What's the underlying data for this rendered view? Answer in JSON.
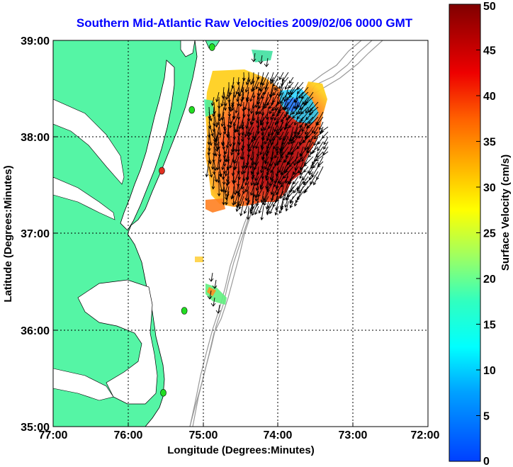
{
  "title": "Southern Mid-Atlantic Raw Velocities 2009/02/06 0000 GMT",
  "xlabel": "Longitude (Degrees:Minutes)",
  "ylabel": "Latitude (Degrees:Minutes)",
  "x_ticks": [
    "77:00",
    "76:00",
    "75:00",
    "74:00",
    "73:00",
    "72:00"
  ],
  "y_ticks": [
    "39:00",
    "38:00",
    "37:00",
    "36:00",
    "35:00"
  ],
  "colorbar": {
    "label": "Surface Velocity (cm/s)",
    "ticks": [
      "0",
      "5",
      "10",
      "15",
      "20",
      "25",
      "30",
      "35",
      "40",
      "45",
      "50"
    ]
  },
  "colors": {
    "land": "#55f5a5",
    "title": "#0000ff",
    "station": "#22dd22",
    "station_alert": "#e03020",
    "bathymetry": "#999999"
  },
  "map": {
    "lon_range": [
      -77,
      -72
    ],
    "lat_range": [
      35,
      39
    ],
    "stations": [
      {
        "lon": -74.88,
        "lat": 38.93,
        "status": "ok"
      },
      {
        "lon": -75.15,
        "lat": 38.28,
        "status": "ok"
      },
      {
        "lon": -75.55,
        "lat": 37.65,
        "status": "alert"
      },
      {
        "lon": -75.25,
        "lat": 36.2,
        "status": "ok"
      },
      {
        "lon": -75.53,
        "lat": 35.35,
        "status": "ok"
      }
    ]
  }
}
